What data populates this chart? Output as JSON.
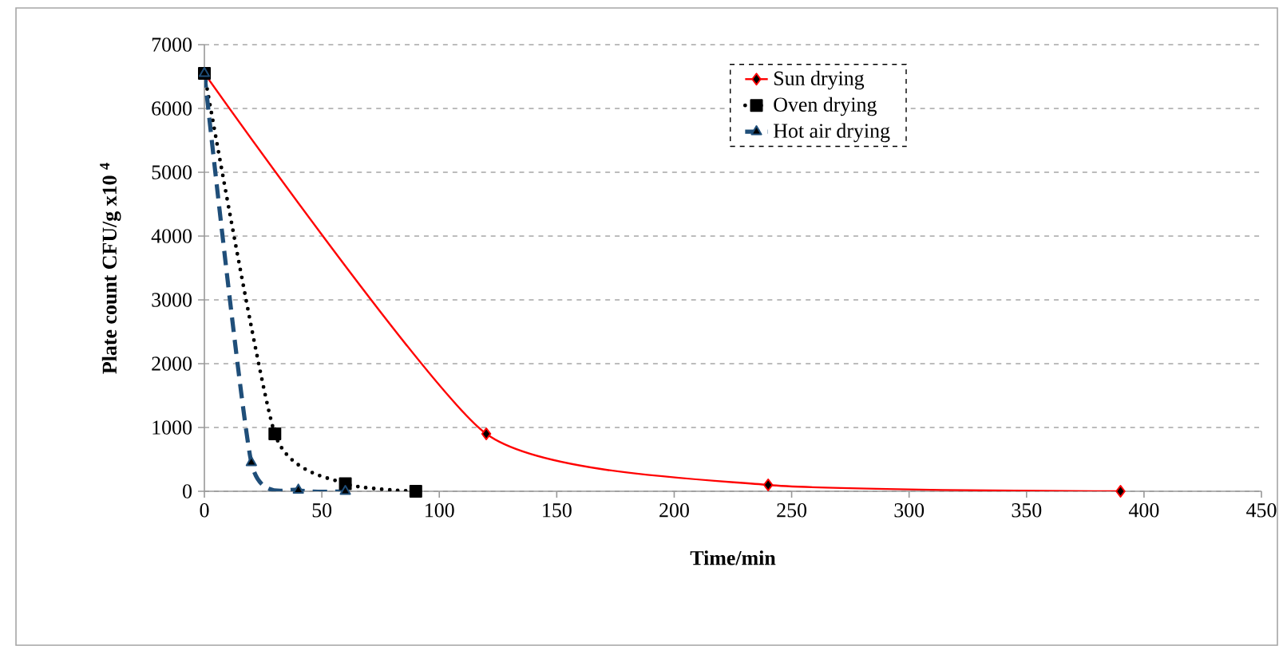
{
  "chart_data": {
    "type": "line",
    "xlabel": "Time/min",
    "ylabel": "Plate count CFU/g x10 $^{4}$",
    "xlim": [
      0,
      450
    ],
    "xticks": [
      0,
      50,
      100,
      150,
      200,
      250,
      300,
      350,
      400,
      450
    ],
    "ylim": [
      0,
      7000
    ],
    "yticks": [
      0,
      1000,
      2000,
      3000,
      4000,
      5000,
      6000,
      7000
    ],
    "grid": "y",
    "legend": "top right",
    "series": [
      {
        "name": "Sun drying",
        "color": "#ff0000",
        "x": [
          0,
          120,
          240,
          390
        ],
        "values": [
          6550,
          900,
          100,
          0
        ],
        "marker": "diamond",
        "line_style": "solid"
      },
      {
        "name": "Oven drying",
        "color": "#000000",
        "x": [
          0,
          30,
          60,
          90
        ],
        "values": [
          6550,
          900,
          120,
          0
        ],
        "marker": "square",
        "line_style": "dotted"
      },
      {
        "name": "Hot air drying",
        "color": "#1f4e79",
        "x": [
          0,
          20,
          40,
          60
        ],
        "values": [
          6550,
          450,
          20,
          0
        ],
        "marker": "triangle",
        "line_style": "dashed"
      }
    ]
  }
}
